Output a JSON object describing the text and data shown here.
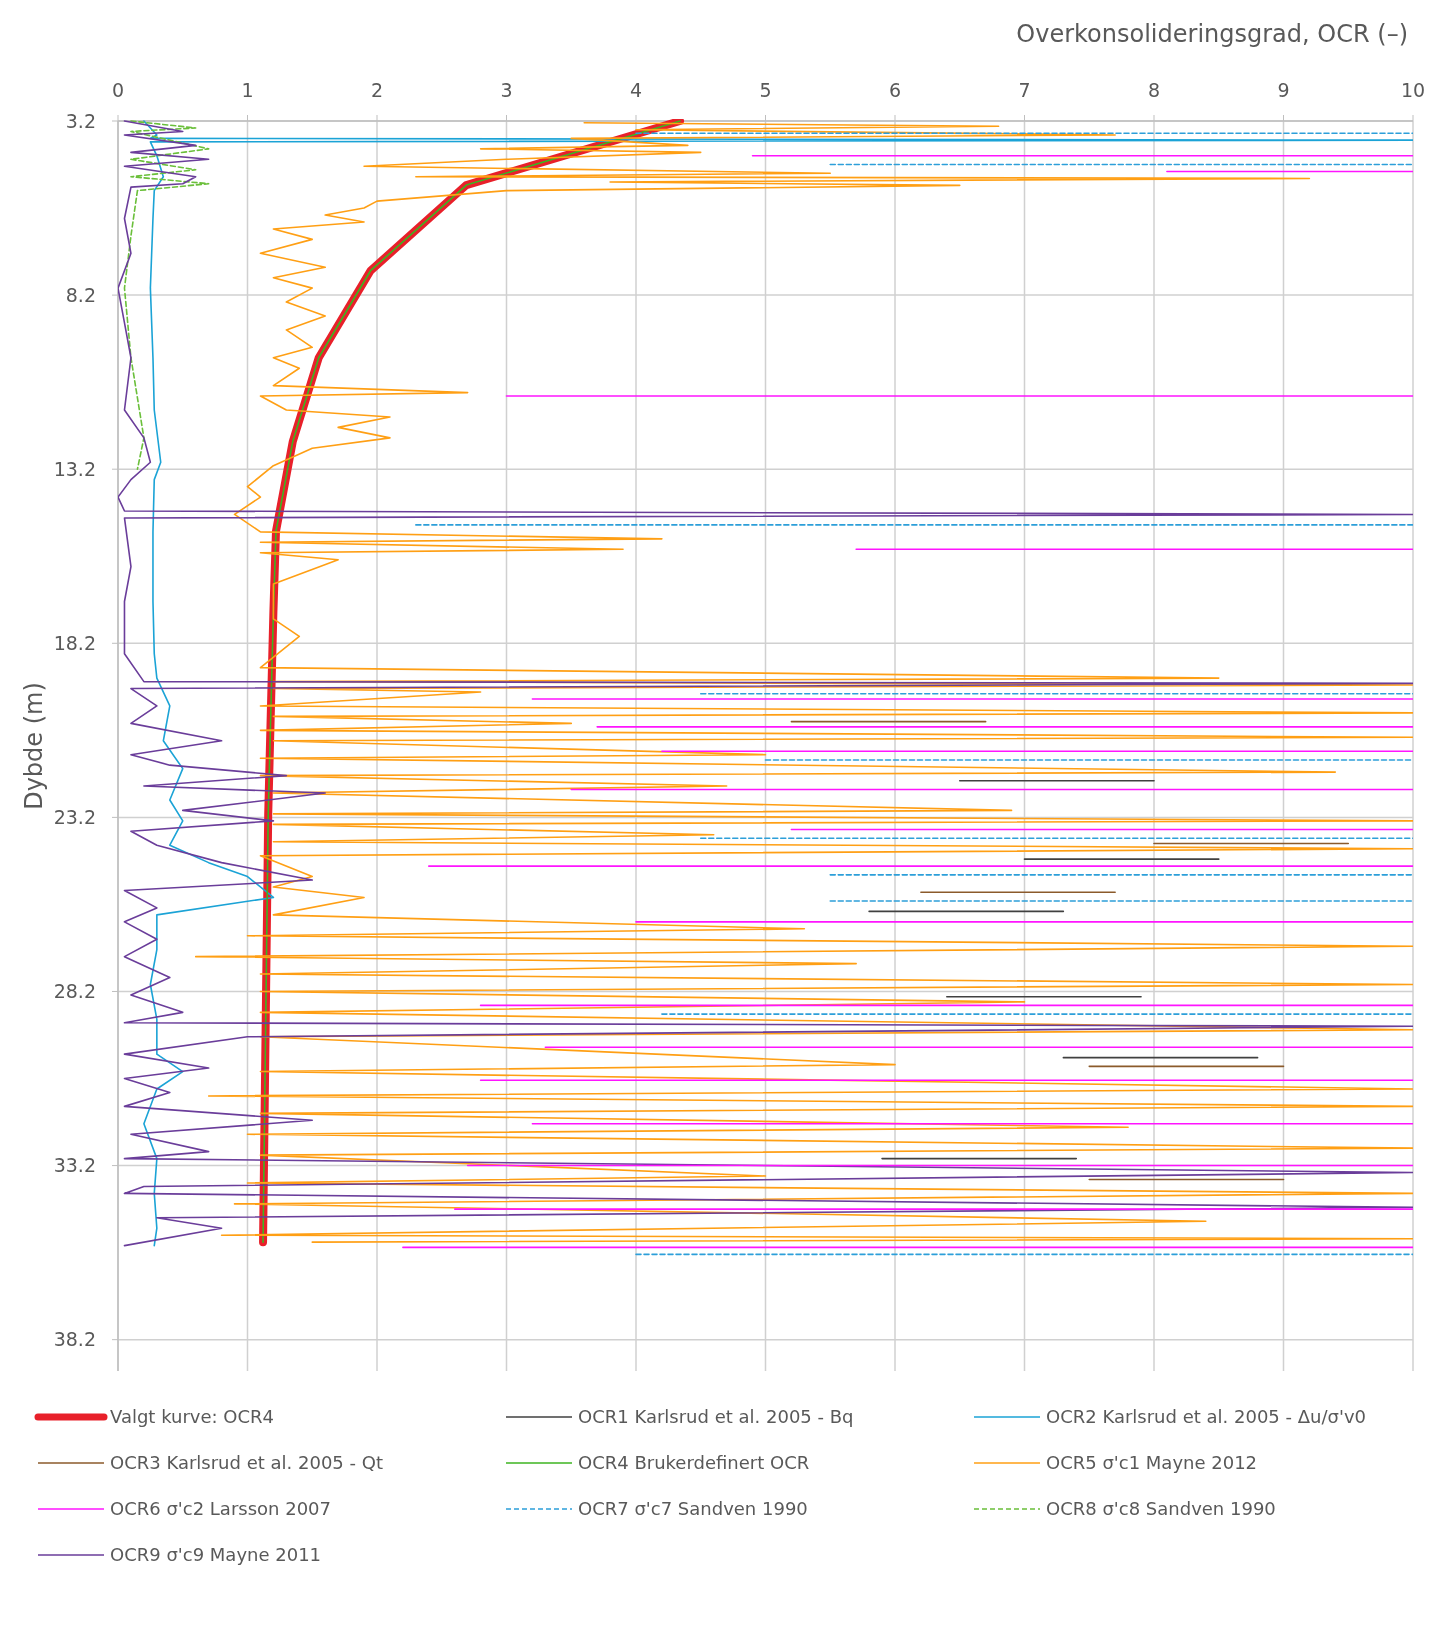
{
  "chart_data": {
    "type": "line",
    "xlabel": "Overkonsolideringsgrad, OCR (–)",
    "ylabel": "Dybde (m)",
    "xlim": [
      0,
      10
    ],
    "xticks": [
      0,
      1,
      2,
      3,
      4,
      5,
      6,
      7,
      8,
      9,
      10
    ],
    "ylim": [
      39.1,
      3.2
    ],
    "yticks": [
      3.2,
      8.2,
      13.2,
      18.2,
      23.2,
      28.2,
      33.2,
      38.2
    ],
    "grid": true,
    "legend": "bottom",
    "line_style": "solid",
    "series": [
      {
        "name": "Valgt kurve: OCR4",
        "color": "#e8202a",
        "x": [
          4.34,
          2.69,
          1.95,
          1.55,
          1.35,
          1.22,
          1.2,
          1.16,
          1.12
        ],
        "values": [
          3.2,
          5.04,
          7.5,
          10.0,
          12.4,
          14.98,
          17.3,
          23.1,
          35.4
        ]
      },
      {
        "name": "OCR1 Karlsrud et al. 2005 - Bq",
        "color": "#404040",
        "x": [
          6.5,
          8.0
        ],
        "values": [
          22.15,
          22.15
        ]
      },
      {
        "name": "OCR2 Karlsrud et al. 2005 - Δu/σ'v0",
        "color": "#1ba3d6",
        "x": [
          0.2,
          0.3,
          0.25,
          10,
          0.25,
          0.3,
          0.35,
          0.28,
          0.27,
          0.25,
          0.27,
          0.28,
          0.33,
          0.28,
          0.27,
          0.27,
          0.28,
          0.3,
          0.4,
          0.35,
          0.5,
          0.4,
          0.5,
          0.4,
          0.7,
          1.0,
          1.2,
          0.3,
          0.3,
          0.25,
          0.3,
          0.3,
          0.5,
          0.3,
          0.2,
          0.3,
          0.28,
          0.3,
          0.28
        ],
        "values": [
          3.2,
          3.6,
          3.7,
          3.75,
          3.8,
          4.2,
          4.8,
          5.2,
          6.0,
          8.0,
          10.0,
          11.5,
          13.0,
          13.5,
          15.0,
          17.0,
          18.5,
          19.2,
          20.0,
          21.0,
          21.8,
          22.7,
          23.3,
          24.0,
          24.5,
          24.9,
          25.5,
          26.0,
          27.0,
          28.0,
          29.0,
          30.0,
          30.5,
          31.0,
          32.0,
          33.0,
          34.0,
          35.0,
          35.5
        ]
      },
      {
        "name": "OCR3 Karlsrud et al. 2005 - Qt",
        "color": "#8b5a2b",
        "x": [
          5.2,
          6.7
        ],
        "values": [
          20.45,
          20.45
        ]
      },
      {
        "name": "OCR4 Brukerdefinert OCR",
        "color": "#3cb521",
        "x": [
          4.34,
          2.69,
          1.95,
          1.55,
          1.35,
          1.22,
          1.2,
          1.16,
          1.12
        ],
        "values": [
          3.2,
          5.04,
          7.5,
          10.0,
          12.4,
          14.98,
          17.3,
          23.1,
          35.4
        ]
      },
      {
        "name": "OCR5 σ'c1 Mayne 2012",
        "color": "#ff9f14",
        "x": [
          3.6,
          6.8,
          4.0,
          7.7,
          3.5,
          4.4,
          2.8,
          4.5,
          3.0,
          1.9,
          5.5,
          2.3,
          9.2,
          3.8,
          6.5,
          3.0,
          2.0,
          1.9,
          1.6,
          1.9,
          1.2,
          1.5,
          1.1,
          1.6,
          1.2,
          1.5,
          1.3,
          1.6,
          1.3,
          1.5,
          1.2,
          1.4,
          1.2,
          2.7,
          1.1,
          1.3,
          2.1,
          1.7,
          2.1,
          1.5,
          1.2,
          1.0,
          1.1,
          0.9,
          1.1,
          4.2,
          1.1,
          3.9,
          1.1,
          1.7,
          1.2,
          1.2,
          1.4,
          1.1,
          8.5,
          1.2,
          10,
          1.2,
          2.8,
          1.1,
          10,
          1.2,
          3.5,
          1.1,
          10,
          1.2,
          5.0,
          1.1,
          9.4,
          1.1,
          4.7,
          1.2,
          6.9,
          1.2,
          10,
          1.2,
          4.6,
          1.2,
          10,
          1.1,
          1.5,
          1.2,
          1.9,
          1.2,
          5.3,
          1.0,
          10,
          0.6,
          5.7,
          1.1,
          10,
          1.1,
          7.0,
          1.1,
          10,
          1.1,
          6.0,
          1.1,
          10,
          0.7,
          10,
          1.1,
          7.8,
          1.0,
          10,
          1.1,
          5.0,
          1.0,
          10,
          0.9,
          8.4,
          0.8,
          10,
          1.5
        ],
        "values": [
          3.25,
          3.35,
          3.45,
          3.6,
          3.7,
          3.9,
          4.0,
          4.1,
          4.3,
          4.5,
          4.7,
          4.8,
          4.85,
          4.95,
          5.05,
          5.2,
          5.5,
          5.7,
          5.9,
          6.1,
          6.3,
          6.6,
          7.0,
          7.4,
          7.7,
          8.0,
          8.4,
          8.8,
          9.2,
          9.7,
          10.0,
          10.3,
          10.8,
          11.0,
          11.1,
          11.5,
          11.7,
          12.0,
          12.3,
          12.6,
          13.1,
          13.7,
          14.0,
          14.5,
          15.0,
          15.2,
          15.3,
          15.5,
          15.6,
          15.8,
          16.5,
          17.5,
          18.0,
          18.9,
          19.2,
          19.3,
          19.4,
          19.5,
          19.6,
          20.0,
          20.2,
          20.3,
          20.5,
          20.7,
          20.9,
          21.0,
          21.4,
          21.5,
          21.9,
          22.0,
          22.3,
          22.5,
          23.0,
          23.1,
          23.3,
          23.4,
          23.7,
          23.9,
          24.1,
          24.3,
          24.9,
          25.2,
          25.5,
          26.0,
          26.4,
          26.6,
          26.9,
          27.2,
          27.4,
          27.7,
          28.0,
          28.2,
          28.5,
          28.8,
          29.3,
          29.5,
          30.3,
          30.5,
          31.0,
          31.2,
          31.5,
          31.7,
          32.1,
          32.3,
          32.7,
          32.9,
          33.5,
          33.7,
          34.0,
          34.3,
          34.8,
          35.2,
          35.3,
          35.4
        ]
      },
      {
        "name": "OCR6 σ'c2 Larsson 2007",
        "color": "#ff14ff",
        "x": [
          4.9,
          10
        ],
        "values": [
          4.2,
          4.2
        ]
      },
      {
        "name": "OCR7 σ'c7 Sandven 1990",
        "color": "#2d9fd9",
        "line_style": "dashed",
        "x": [
          4.0,
          10
        ],
        "values": [
          3.55,
          3.55
        ]
      },
      {
        "name": "OCR8 σ'c8 Sandven 1990",
        "color": "#6abf3a",
        "line_style": "dashed",
        "x": [
          0.1,
          0.6,
          0.1,
          0.7,
          0.1,
          0.6,
          0.1,
          0.7,
          0.15,
          0.1,
          0.05,
          0.1,
          0.2,
          0.15
        ],
        "values": [
          3.2,
          3.4,
          3.5,
          4.0,
          4.3,
          4.6,
          4.8,
          5.0,
          5.2,
          6.5,
          8.0,
          10.0,
          12.3,
          13.2
        ]
      },
      {
        "name": "OCR9 σ'c9 Mayne 2011",
        "color": "#6a3d9a",
        "x": [
          0.05,
          0.5,
          0.05,
          0.6,
          0.1,
          0.7,
          0.05,
          0.6,
          0.5,
          0.1,
          0.05,
          0.1,
          0.0,
          0.05,
          0.1,
          0.05,
          0.2,
          0.25,
          0.1,
          0.0,
          0.05,
          10,
          0.05,
          0.1,
          0.05,
          0.05,
          0.2,
          10,
          0.1,
          0.3,
          0.1,
          0.8,
          0.1,
          0.4,
          1.3,
          0.2,
          1.6,
          0.5,
          1.2,
          0.1,
          0.3,
          0.8,
          1.5,
          0.05,
          0.3,
          0.05,
          0.3,
          0.05,
          0.4,
          0.1,
          0.5,
          0.05,
          10,
          1.0,
          0.05,
          0.7,
          0.05,
          0.4,
          0.05,
          1.5,
          0.1,
          0.7,
          0.05,
          10,
          0.2,
          0.05,
          10,
          0.3,
          0.8,
          0.05
        ],
        "values": [
          3.2,
          3.5,
          3.6,
          3.9,
          4.1,
          4.3,
          4.5,
          4.8,
          5.0,
          5.1,
          6.0,
          7.0,
          8.0,
          9.0,
          10.0,
          11.5,
          12.3,
          13.0,
          13.5,
          14.0,
          14.4,
          14.5,
          14.6,
          16.0,
          17.0,
          18.5,
          19.3,
          19.35,
          19.5,
          20.0,
          20.5,
          21.0,
          21.4,
          21.7,
          22.0,
          22.3,
          22.5,
          23.0,
          23.3,
          23.6,
          24.0,
          24.5,
          25.0,
          25.3,
          25.8,
          26.2,
          26.7,
          27.2,
          27.8,
          28.3,
          28.8,
          29.1,
          29.2,
          29.5,
          30.0,
          30.4,
          30.7,
          31.1,
          31.5,
          31.9,
          32.3,
          32.8,
          33.0,
          33.4,
          33.8,
          34.0,
          34.4,
          34.7,
          35.0,
          35.5
        ]
      },
      {
        "color": "#404040",
        "x": [
          7.0,
          8.5
        ],
        "values": [
          24.4,
          24.4
        ]
      },
      {
        "color": "#404040",
        "x": [
          5.8,
          7.3
        ],
        "values": [
          25.9,
          25.9
        ]
      },
      {
        "color": "#404040",
        "x": [
          6.4,
          7.9
        ],
        "values": [
          28.35,
          28.35
        ]
      },
      {
        "color": "#404040",
        "x": [
          7.3,
          8.8
        ],
        "values": [
          30.1,
          30.1
        ]
      },
      {
        "color": "#404040",
        "x": [
          5.9,
          7.4
        ],
        "values": [
          33.0,
          33.0
        ]
      },
      {
        "color": "#8b5a2b",
        "x": [
          8.0,
          9.5
        ],
        "values": [
          23.95,
          23.95
        ]
      },
      {
        "color": "#8b5a2b",
        "x": [
          6.2,
          7.7
        ],
        "values": [
          25.35,
          25.35
        ]
      },
      {
        "color": "#8b5a2b",
        "x": [
          7.5,
          9.0
        ],
        "values": [
          30.35,
          30.35
        ]
      },
      {
        "color": "#8b5a2b",
        "x": [
          7.5,
          9.0
        ],
        "values": [
          33.6,
          33.6
        ]
      },
      {
        "color": "#ff14ff",
        "x": [
          8.1,
          10
        ],
        "values": [
          4.65,
          4.65
        ]
      },
      {
        "color": "#ff14ff",
        "x": [
          3.0,
          10
        ],
        "values": [
          11.1,
          11.1
        ]
      },
      {
        "color": "#ff14ff",
        "x": [
          5.7,
          10
        ],
        "values": [
          15.5,
          15.5
        ]
      },
      {
        "color": "#ff14ff",
        "x": [
          3.2,
          10
        ],
        "values": [
          19.8,
          19.8
        ]
      },
      {
        "color": "#ff14ff",
        "x": [
          3.7,
          10
        ],
        "values": [
          20.6,
          20.6
        ]
      },
      {
        "color": "#ff14ff",
        "x": [
          4.2,
          10
        ],
        "values": [
          21.3,
          21.3
        ]
      },
      {
        "color": "#ff14ff",
        "x": [
          3.5,
          10
        ],
        "values": [
          22.4,
          22.4
        ]
      },
      {
        "color": "#ff14ff",
        "x": [
          5.2,
          10
        ],
        "values": [
          23.55,
          23.55
        ]
      },
      {
        "color": "#ff14ff",
        "x": [
          2.4,
          10
        ],
        "values": [
          24.6,
          24.6
        ]
      },
      {
        "color": "#ff14ff",
        "x": [
          4.0,
          10
        ],
        "values": [
          26.2,
          26.2
        ]
      },
      {
        "color": "#ff14ff",
        "x": [
          2.8,
          10
        ],
        "values": [
          28.6,
          28.6
        ]
      },
      {
        "color": "#ff14ff",
        "x": [
          3.3,
          10
        ],
        "values": [
          29.8,
          29.8
        ]
      },
      {
        "color": "#ff14ff",
        "x": [
          2.8,
          10
        ],
        "values": [
          30.75,
          30.75
        ]
      },
      {
        "color": "#ff14ff",
        "x": [
          3.2,
          10
        ],
        "values": [
          32.0,
          32.0
        ]
      },
      {
        "color": "#ff14ff",
        "x": [
          2.7,
          10
        ],
        "values": [
          33.2,
          33.2
        ]
      },
      {
        "color": "#ff14ff",
        "x": [
          2.6,
          10
        ],
        "values": [
          34.45,
          34.45
        ]
      },
      {
        "color": "#ff14ff",
        "x": [
          2.2,
          10
        ],
        "values": [
          35.55,
          35.55
        ]
      },
      {
        "color": "#2d9fd9",
        "line_style": "dashed",
        "x": [
          5.5,
          10
        ],
        "values": [
          4.45,
          4.45
        ]
      },
      {
        "color": "#2d9fd9",
        "line_style": "dashed",
        "x": [
          2.3,
          10
        ],
        "values": [
          14.8,
          14.8
        ]
      },
      {
        "color": "#2d9fd9",
        "line_style": "dashed",
        "x": [
          4.5,
          10
        ],
        "values": [
          19.65,
          19.65
        ]
      },
      {
        "color": "#2d9fd9",
        "line_style": "dashed",
        "x": [
          5.0,
          10
        ],
        "values": [
          21.55,
          21.55
        ]
      },
      {
        "color": "#2d9fd9",
        "line_style": "dashed",
        "x": [
          4.5,
          10
        ],
        "values": [
          23.8,
          23.8
        ]
      },
      {
        "color": "#2d9fd9",
        "line_style": "dashed",
        "x": [
          5.5,
          10
        ],
        "values": [
          24.85,
          24.85
        ]
      },
      {
        "color": "#2d9fd9",
        "line_style": "dashed",
        "x": [
          5.5,
          10
        ],
        "values": [
          25.6,
          25.6
        ]
      },
      {
        "color": "#2d9fd9",
        "line_style": "dashed",
        "x": [
          4.2,
          10
        ],
        "values": [
          28.85,
          28.85
        ]
      },
      {
        "color": "#2d9fd9",
        "line_style": "dashed",
        "x": [
          4.0,
          10
        ],
        "values": [
          35.75,
          35.75
        ]
      }
    ]
  }
}
